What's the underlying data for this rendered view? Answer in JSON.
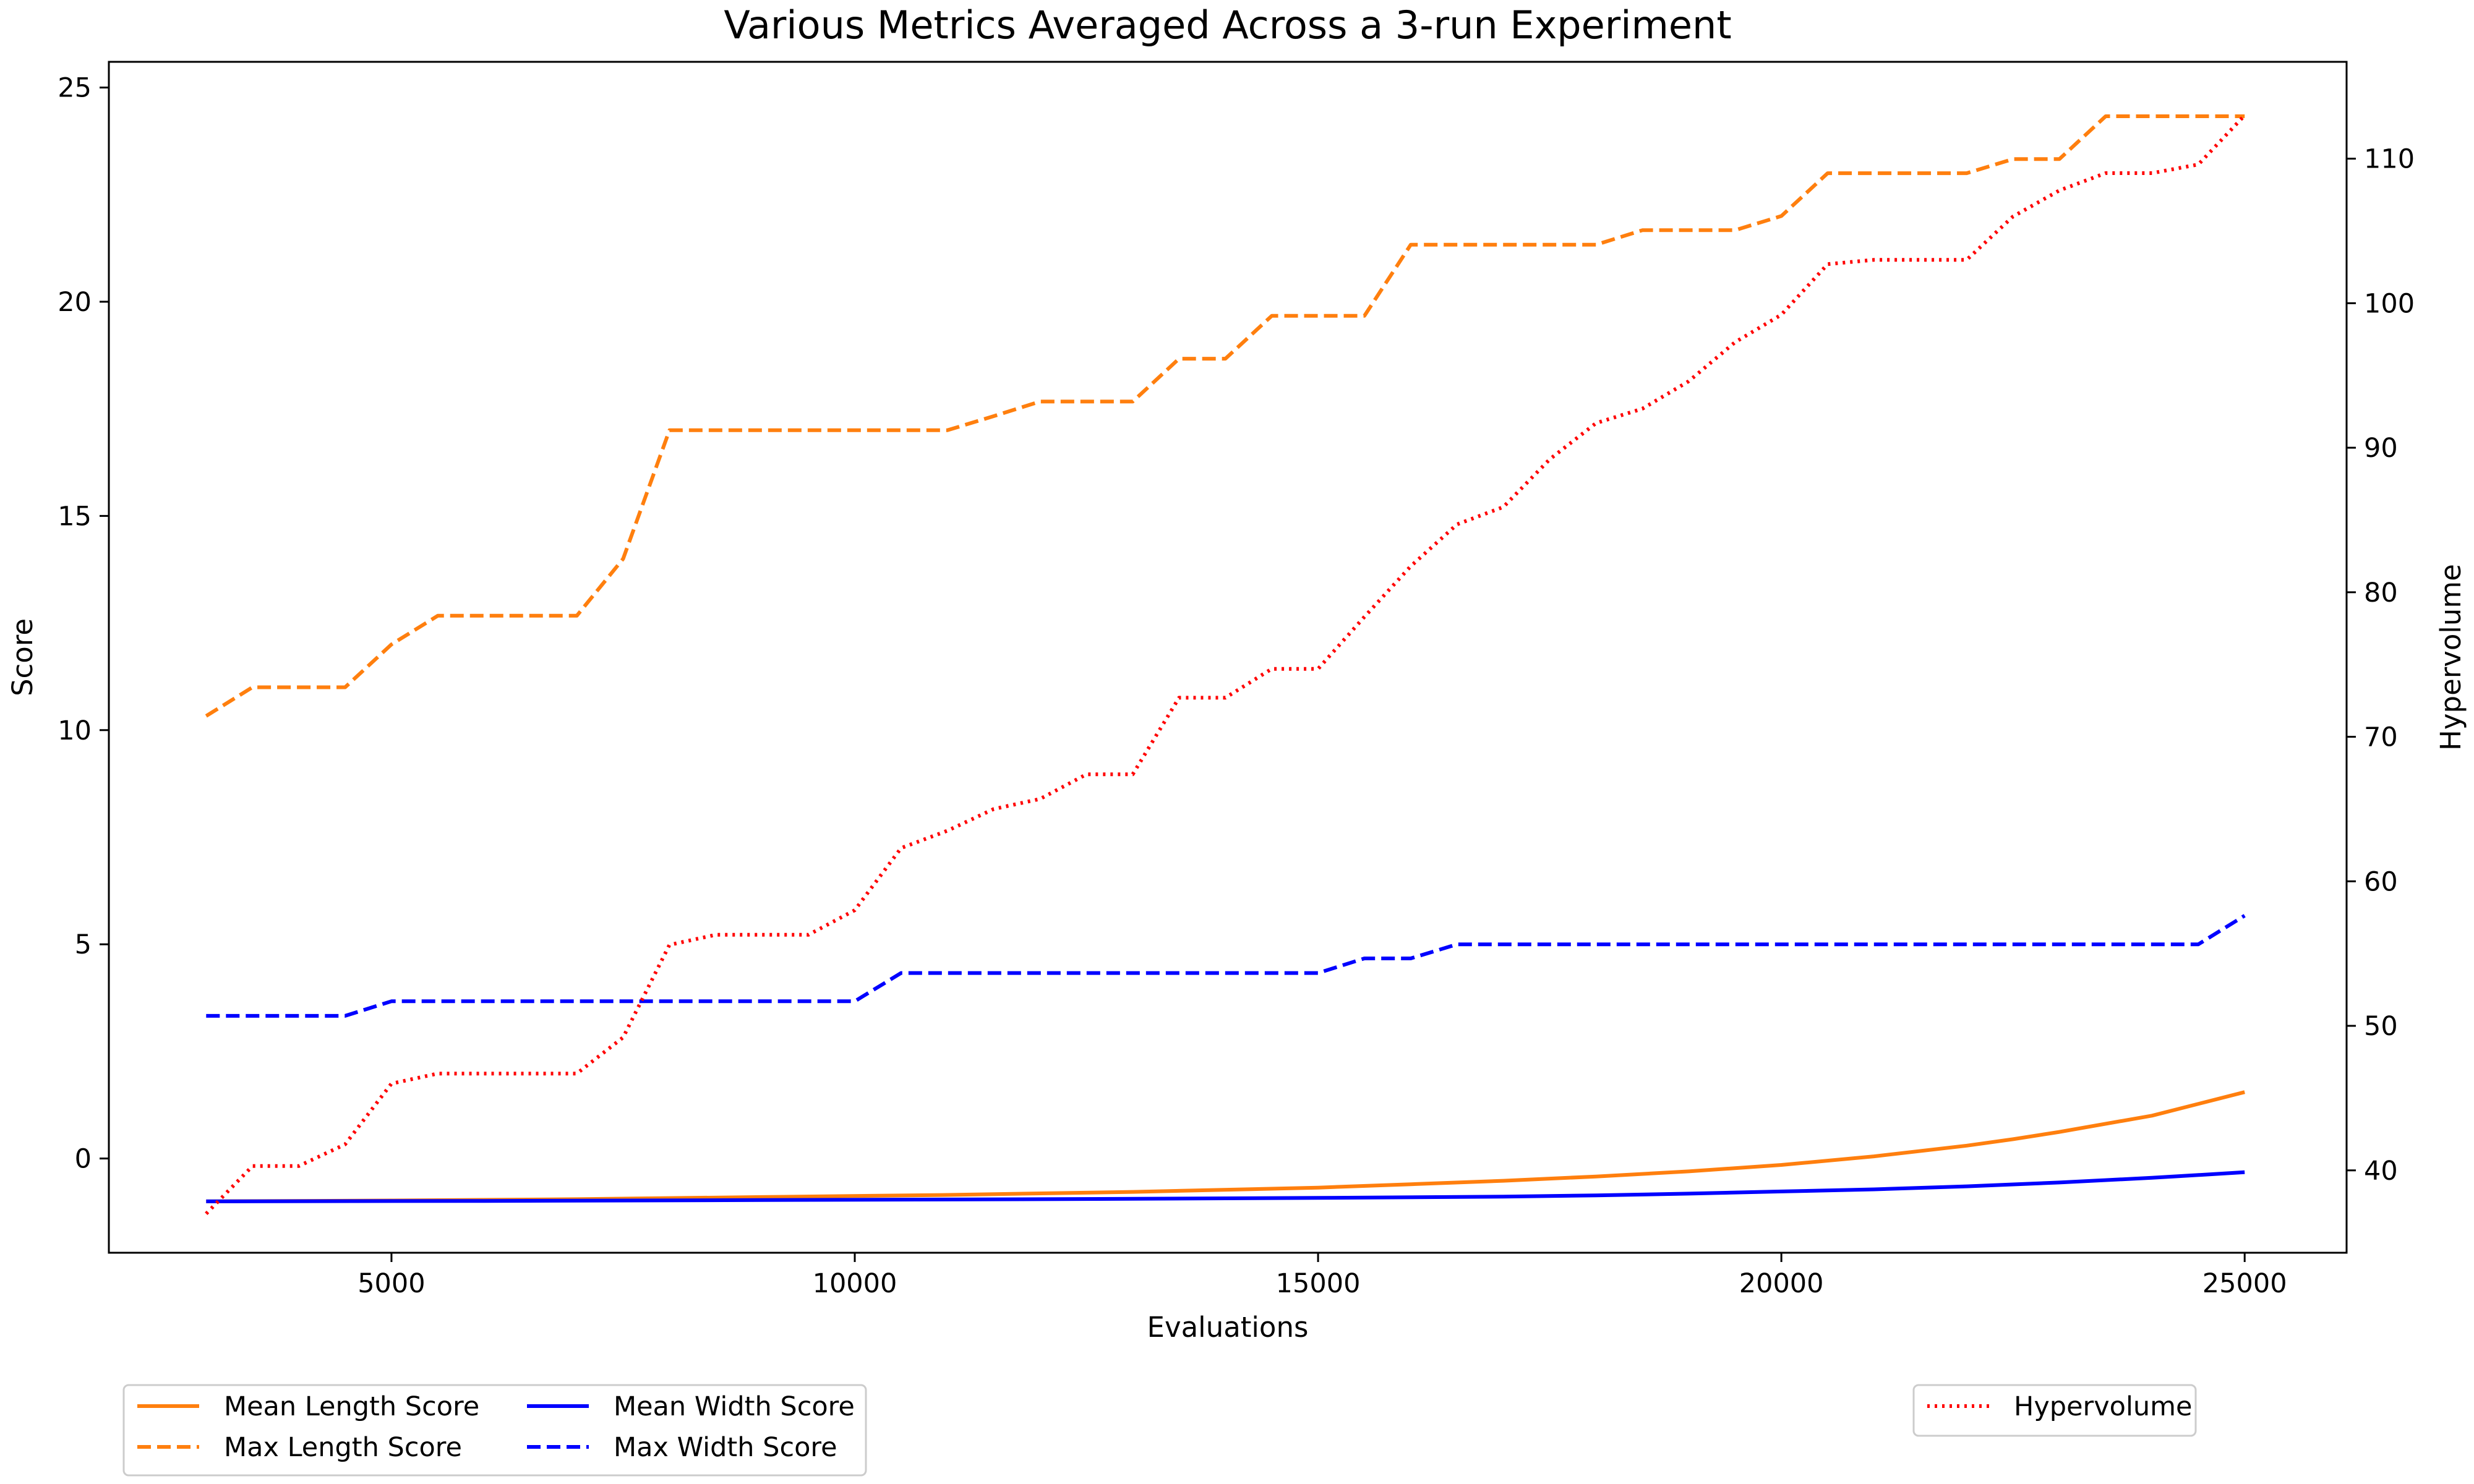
{
  "chart_data": {
    "type": "line",
    "title": "Various Metrics Averaged Across a 3-run Experiment",
    "xlabel": "Evaluations",
    "ylabel": "Score",
    "y2label": "Hypervolume",
    "xlim": [
      1950,
      26100
    ],
    "ylim": [
      -2.2,
      25.6
    ],
    "y2lim": [
      34.3,
      116.7
    ],
    "xticks": [
      5000,
      10000,
      15000,
      20000,
      25000
    ],
    "yticks": [
      0,
      5,
      10,
      15,
      20,
      25
    ],
    "y2ticks": [
      40,
      50,
      60,
      70,
      80,
      90,
      100,
      110
    ],
    "grid": false,
    "series": [
      {
        "name": "Mean Length Score",
        "axis": "left",
        "color": "#ff7f0e",
        "style": "solid",
        "x": [
          3000,
          5000,
          7000,
          9000,
          11000,
          13000,
          15000,
          16000,
          17000,
          18000,
          19000,
          20000,
          21000,
          22000,
          22500,
          23000,
          24000,
          25000
        ],
        "y": [
          -1.0,
          -0.98,
          -0.95,
          -0.9,
          -0.85,
          -0.78,
          -0.68,
          -0.6,
          -0.52,
          -0.42,
          -0.3,
          -0.15,
          0.05,
          0.3,
          0.45,
          0.62,
          1.0,
          1.55
        ]
      },
      {
        "name": "Max Length Score",
        "axis": "left",
        "color": "#ff7f0e",
        "style": "dashed",
        "x": [
          3000,
          3500,
          4000,
          4500,
          5000,
          5500,
          6000,
          6500,
          7000,
          7500,
          8000,
          8500,
          9000,
          9500,
          10000,
          10500,
          11000,
          11500,
          12000,
          12500,
          13000,
          13500,
          14000,
          14500,
          15000,
          15500,
          16000,
          16500,
          17000,
          17500,
          18000,
          18500,
          19000,
          19500,
          20000,
          20500,
          21000,
          21500,
          22000,
          22500,
          23000,
          23500,
          24000,
          24500,
          25000
        ],
        "y": [
          10.33,
          11.0,
          11.0,
          11.0,
          12.0,
          12.67,
          12.67,
          12.67,
          12.67,
          14.0,
          17.0,
          17.0,
          17.0,
          17.0,
          17.0,
          17.0,
          17.0,
          17.33,
          17.67,
          17.67,
          17.67,
          18.67,
          18.67,
          19.67,
          19.67,
          19.67,
          21.33,
          21.33,
          21.33,
          21.33,
          21.33,
          21.67,
          21.67,
          21.67,
          22.0,
          23.0,
          23.0,
          23.0,
          23.0,
          23.33,
          23.33,
          24.33,
          24.33,
          24.33,
          24.33
        ]
      },
      {
        "name": "Mean Width Score",
        "axis": "left",
        "color": "#0000ff",
        "style": "solid",
        "x": [
          3000,
          6000,
          9000,
          12000,
          15000,
          17000,
          18000,
          19000,
          20000,
          21000,
          22000,
          23000,
          24000,
          25000
        ],
        "y": [
          -1.0,
          -0.99,
          -0.97,
          -0.95,
          -0.92,
          -0.89,
          -0.86,
          -0.82,
          -0.77,
          -0.72,
          -0.65,
          -0.56,
          -0.45,
          -0.32
        ]
      },
      {
        "name": "Max Width Score",
        "axis": "left",
        "color": "#0000ff",
        "style": "dashed",
        "x": [
          3000,
          3500,
          4000,
          4500,
          5000,
          5500,
          6000,
          6500,
          7000,
          7500,
          8000,
          8500,
          9000,
          9500,
          10000,
          10500,
          11000,
          11500,
          12000,
          12500,
          13000,
          13500,
          14000,
          14500,
          15000,
          15500,
          16000,
          16500,
          17000,
          17500,
          18000,
          18500,
          19000,
          19500,
          20000,
          20500,
          21000,
          21500,
          22000,
          22500,
          23000,
          23500,
          24000,
          24500,
          25000
        ],
        "y": [
          3.33,
          3.33,
          3.33,
          3.33,
          3.67,
          3.67,
          3.67,
          3.67,
          3.67,
          3.67,
          3.67,
          3.67,
          3.67,
          3.67,
          3.67,
          4.33,
          4.33,
          4.33,
          4.33,
          4.33,
          4.33,
          4.33,
          4.33,
          4.33,
          4.33,
          4.67,
          4.67,
          5.0,
          5.0,
          5.0,
          5.0,
          5.0,
          5.0,
          5.0,
          5.0,
          5.0,
          5.0,
          5.0,
          5.0,
          5.0,
          5.0,
          5.0,
          5.0,
          5.0,
          5.67
        ]
      },
      {
        "name": "Hypervolume",
        "axis": "right",
        "color": "#ff0000",
        "style": "dotted",
        "x": [
          3000,
          3500,
          4000,
          4500,
          5000,
          5500,
          6000,
          6500,
          7000,
          7500,
          8000,
          8500,
          9000,
          9500,
          10000,
          10500,
          11000,
          11500,
          12000,
          12500,
          13000,
          13500,
          14000,
          14500,
          15000,
          15500,
          16000,
          16500,
          17000,
          17500,
          18000,
          18500,
          19000,
          19500,
          20000,
          20500,
          21000,
          21500,
          22000,
          22500,
          23000,
          23500,
          24000,
          24500,
          25000
        ],
        "y": [
          37.0,
          40.3,
          40.3,
          41.8,
          46.0,
          46.7,
          46.7,
          46.7,
          46.7,
          49.2,
          55.6,
          56.3,
          56.3,
          56.3,
          58.0,
          62.3,
          63.5,
          65.0,
          65.7,
          67.4,
          67.4,
          72.7,
          72.7,
          74.7,
          74.7,
          78.3,
          81.8,
          84.7,
          85.9,
          89.2,
          91.7,
          92.7,
          94.6,
          97.3,
          99.2,
          102.7,
          103.0,
          103.0,
          103.0,
          106.0,
          107.8,
          109.0,
          109.0,
          109.6,
          113.0
        ]
      }
    ],
    "legends": [
      {
        "placement": "below-left",
        "entries": [
          "Mean Length Score",
          "Max Length Score",
          "Mean Width Score",
          "Max Width Score"
        ]
      },
      {
        "placement": "below-right",
        "entries": [
          "Hypervolume"
        ]
      }
    ]
  }
}
